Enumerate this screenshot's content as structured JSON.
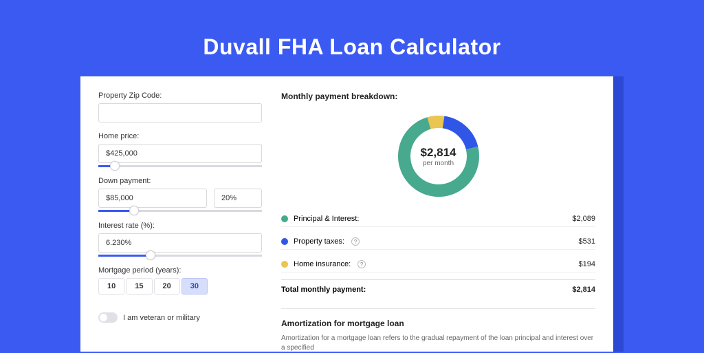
{
  "page": {
    "title": "Duvall FHA Loan Calculator",
    "background": "#3a5af2",
    "card_shadow": "#2b49d2",
    "card_bg": "#ffffff"
  },
  "form": {
    "zip": {
      "label": "Property Zip Code:",
      "value": ""
    },
    "home_price": {
      "label": "Home price:",
      "value": "$425,000",
      "slider_pct": 10
    },
    "down_payment": {
      "label": "Down payment:",
      "value": "$85,000",
      "pct": "20%",
      "slider_pct": 22
    },
    "interest": {
      "label": "Interest rate (%):",
      "value": "6.230%",
      "slider_pct": 32
    },
    "period": {
      "label": "Mortgage period (years):",
      "options": [
        "10",
        "15",
        "20",
        "30"
      ],
      "selected": "30"
    },
    "veteran": {
      "label": "I am veteran or military",
      "checked": false
    }
  },
  "breakdown": {
    "title": "Monthly payment breakdown:",
    "center_value": "$2,814",
    "center_sub": "per month",
    "items": [
      {
        "key": "pi",
        "label": "Principal & Interest:",
        "amount": "$2,089",
        "color": "#47a98d",
        "info": false,
        "pct": 74.3
      },
      {
        "key": "tax",
        "label": "Property taxes:",
        "amount": "$531",
        "color": "#2f56e6",
        "info": true,
        "pct": 18.9
      },
      {
        "key": "ins",
        "label": "Home insurance:",
        "amount": "$194",
        "color": "#eac552",
        "info": true,
        "pct": 6.8
      }
    ],
    "total": {
      "label": "Total monthly payment:",
      "amount": "$2,814"
    }
  },
  "amort": {
    "title": "Amortization for mortgage loan",
    "desc": "Amortization for a mortgage loan refers to the gradual repayment of the loan principal and interest over a specified"
  },
  "chart": {
    "type": "donut",
    "stroke_width": 18,
    "radius": 50,
    "bg": "#ffffff"
  }
}
